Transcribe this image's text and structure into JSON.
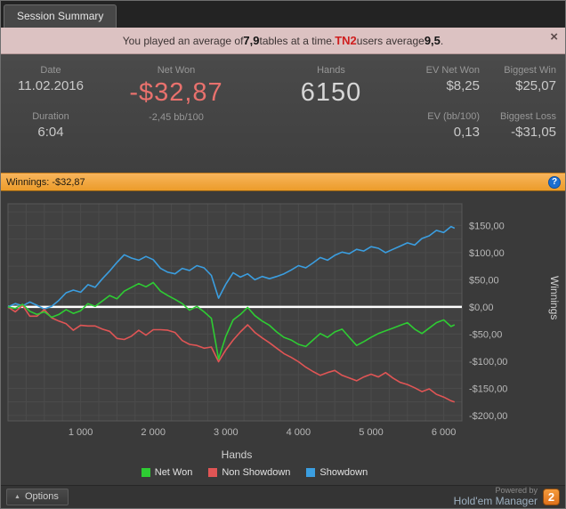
{
  "window": {
    "tab": "Session Summary"
  },
  "notification": {
    "prefix": "You played an average of ",
    "tables_avg": "7,9",
    "middle": " tables at a time. ",
    "brand": "TN2",
    "middle2": " users average ",
    "users_avg": "9,5",
    "suffix": " .",
    "close": "×"
  },
  "stats": {
    "date": {
      "label": "Date",
      "value": "11.02.2016"
    },
    "net_won": {
      "label": "Net Won",
      "value": "-$32,87",
      "sub": "-2,45 bb/100"
    },
    "hands": {
      "label": "Hands",
      "value": "6150"
    },
    "duration": {
      "label": "Duration",
      "value": "6:04"
    },
    "ev_net_won": {
      "label": "EV Net Won",
      "value": "$8,25"
    },
    "ev_bb100": {
      "label": "EV (bb/100)",
      "value": "0,13"
    },
    "biggest_win": {
      "label": "Biggest Win",
      "value": "$25,07"
    },
    "biggest_loss": {
      "label": "Biggest Loss",
      "value": "-$31,05"
    }
  },
  "winnings_bar": {
    "label": "Winnings: -$32,87",
    "help": "?"
  },
  "chart_data": {
    "type": "line",
    "xlabel": "Hands",
    "ylabel": "Winnings",
    "xlim": [
      0,
      6250
    ],
    "ylim": [
      -210,
      190
    ],
    "x_ticks": [
      "1 000",
      "2 000",
      "3 000",
      "4 000",
      "5 000",
      "6 000"
    ],
    "x_tick_values": [
      1000,
      2000,
      3000,
      4000,
      5000,
      6000
    ],
    "y_ticks": [
      "$150,00",
      "$100,00",
      "$50,00",
      "$0,00",
      "-$50,00",
      "-$100,00",
      "-$150,00",
      "-$200,00"
    ],
    "y_tick_values": [
      150,
      100,
      50,
      0,
      -50,
      -100,
      -150,
      -200
    ],
    "grid_color": "#4b4b4b",
    "plot_bg": "#414141",
    "zero_line_color": "#ffffff",
    "x": [
      0,
      100,
      200,
      300,
      400,
      500,
      600,
      700,
      800,
      900,
      1000,
      1100,
      1200,
      1300,
      1400,
      1500,
      1600,
      1700,
      1800,
      1900,
      2000,
      2100,
      2200,
      2300,
      2400,
      2500,
      2600,
      2700,
      2800,
      2900,
      3000,
      3100,
      3200,
      3300,
      3400,
      3500,
      3600,
      3700,
      3800,
      3900,
      4000,
      4100,
      4200,
      4300,
      4400,
      4500,
      4600,
      4700,
      4800,
      4900,
      5000,
      5100,
      5200,
      5300,
      5400,
      5500,
      5600,
      5700,
      5800,
      5900,
      6000,
      6100,
      6150
    ],
    "series": [
      {
        "name": "Net Won",
        "color": "#2ecc33",
        "y": [
          0,
          -3,
          5,
          -8,
          -14,
          -9,
          -19,
          -14,
          -5,
          -12,
          -7,
          6,
          1,
          11,
          21,
          15,
          29,
          36,
          43,
          37,
          45,
          29,
          21,
          14,
          6,
          -6,
          1,
          -9,
          -21,
          -96,
          -54,
          -24,
          -14,
          -1,
          -16,
          -26,
          -34,
          -46,
          -56,
          -61,
          -69,
          -73,
          -61,
          -49,
          -56,
          -46,
          -41,
          -56,
          -71,
          -64,
          -56,
          -49,
          -44,
          -39,
          -34,
          -29,
          -41,
          -49,
          -39,
          -29,
          -24,
          -36,
          -33
        ]
      },
      {
        "name": "Non Showdown",
        "color": "#e05555",
        "y": [
          0,
          -9,
          3,
          -17,
          -17,
          -5,
          -20,
          -26,
          -31,
          -43,
          -34,
          -35,
          -35,
          -41,
          -45,
          -58,
          -60,
          -54,
          -43,
          -52,
          -42,
          -42,
          -43,
          -47,
          -62,
          -69,
          -71,
          -76,
          -74,
          -101,
          -79,
          -61,
          -46,
          -33,
          -47,
          -57,
          -66,
          -76,
          -86,
          -93,
          -101,
          -111,
          -119,
          -126,
          -121,
          -117,
          -126,
          -131,
          -136,
          -129,
          -124,
          -129,
          -121,
          -131,
          -139,
          -143,
          -149,
          -156,
          -151,
          -161,
          -166,
          -173,
          -175
        ]
      },
      {
        "name": "Showdown",
        "color": "#3b9ee0",
        "y": [
          0,
          6,
          2,
          9,
          3,
          -4,
          1,
          12,
          26,
          31,
          27,
          41,
          36,
          52,
          66,
          82,
          96,
          90,
          86,
          93,
          87,
          71,
          64,
          61,
          71,
          67,
          76,
          72,
          58,
          16,
          42,
          63,
          55,
          61,
          50,
          56,
          52,
          56,
          61,
          68,
          76,
          72,
          81,
          91,
          86,
          95,
          101,
          98,
          106,
          103,
          111,
          108,
          100,
          106,
          112,
          118,
          114,
          126,
          131,
          141,
          137,
          148,
          145
        ]
      }
    ]
  },
  "footer": {
    "options": "Options",
    "options_arrow": "▲",
    "powered_by": "Powered by",
    "brand": "Hold'em Manager",
    "logo": "2"
  }
}
